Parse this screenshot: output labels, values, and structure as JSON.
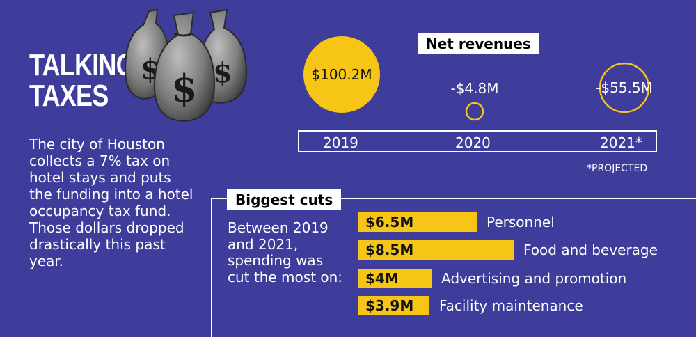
{
  "title": "TALKING TAXES",
  "intro": "The city of Houston collects a 7% tax on hotel stays and puts the funding into a hotel occupancy tax fund. Those dollars dropped drastically this past year.",
  "net_revenues_label": "Net revenues",
  "projected_note": "*PROJECTED",
  "biggest_cuts_label": "Biggest cuts",
  "cuts_intro": "Between 2019 and 2021, spending was cut the most on:",
  "colors": {
    "background": "#3f3d9c",
    "accent": "#f6c516",
    "text": "#ffffff"
  },
  "chart_data": [
    {
      "type": "bubble",
      "title": "Net revenues",
      "categories": [
        "2019",
        "2020",
        "2021*"
      ],
      "values": [
        100.2,
        -4.8,
        -55.5
      ],
      "labels": [
        "$100.2M",
        "-$4.8M",
        "-$55.5M"
      ],
      "unit": "$M",
      "encoding": "circle area proportional to magnitude; filled = positive, outline = negative"
    },
    {
      "type": "bar",
      "orientation": "horizontal",
      "title": "Biggest cuts",
      "categories": [
        "Personnel",
        "Food and beverage",
        "Advertising and promotion",
        "Facility maintenance"
      ],
      "values": [
        6.5,
        8.5,
        4,
        3.9
      ],
      "labels": [
        "$6.5M",
        "$8.5M",
        "$4M",
        "$3.9M"
      ],
      "unit": "$M"
    }
  ]
}
